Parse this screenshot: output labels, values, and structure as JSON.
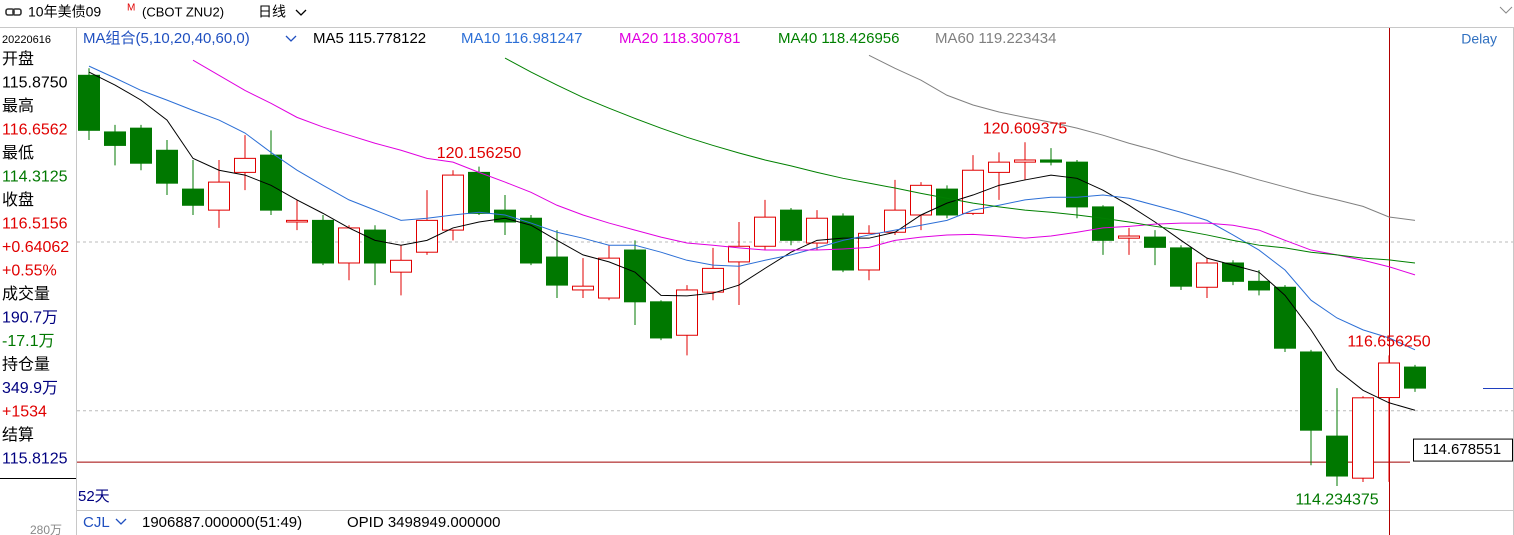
{
  "header": {
    "title": "10年美债09",
    "badge": "M",
    "code": "(CBOT ZNU2)",
    "period": "日线"
  },
  "sidebar": {
    "date": "20220616",
    "items": [
      {
        "text": "开盘",
        "color": "#000000"
      },
      {
        "text": "115.8750",
        "color": "#000000"
      },
      {
        "text": "最高",
        "color": "#000000"
      },
      {
        "text": "116.6562",
        "color": "#e00000"
      },
      {
        "text": "最低",
        "color": "#000000"
      },
      {
        "text": "114.3125",
        "color": "#007800"
      },
      {
        "text": "收盘",
        "color": "#000000"
      },
      {
        "text": "116.5156",
        "color": "#e00000"
      },
      {
        "text": "+0.64062",
        "color": "#e00000"
      },
      {
        "text": "+0.55%",
        "color": "#e00000"
      },
      {
        "text": "成交量",
        "color": "#000000"
      },
      {
        "text": "190.7万",
        "color": "#000080"
      },
      {
        "text": "-17.1万",
        "color": "#007800"
      },
      {
        "text": "持仓量",
        "color": "#000000"
      },
      {
        "text": "349.9万",
        "color": "#000080"
      },
      {
        "text": "+1534",
        "color": "#e00000"
      },
      {
        "text": "结算",
        "color": "#000000"
      },
      {
        "text": "115.8125",
        "color": "#000080"
      }
    ],
    "scale_label": "280万"
  },
  "chart_data": {
    "type": "candlestick",
    "ma_group": "MA组合(5,10,20,40,60,0)",
    "days": "52天",
    "delay": "Delay",
    "ylim": [
      113.79,
      122.69
    ],
    "ygrid": [
      118.76,
      115.63
    ],
    "up_color": "#e00000",
    "down_color": "#007800",
    "open": [
      121.85,
      120.8,
      120.87,
      120.46,
      119.74,
      119.35,
      120.05,
      120.37,
      119.13,
      119.16,
      118.37,
      118.98,
      118.2,
      118.57,
      118.98,
      120.05,
      119.35,
      119.2,
      118.48,
      117.87,
      117.72,
      118.61,
      117.65,
      117.03,
      117.83,
      118.39,
      118.68,
      119.35,
      118.74,
      119.24,
      118.24,
      118.94,
      119.26,
      119.74,
      119.29,
      120.05,
      120.24,
      120.28,
      120.24,
      119.41,
      118.83,
      118.85,
      118.65,
      117.92,
      118.37,
      118.03,
      117.92,
      116.72,
      115.16,
      114.38,
      115.875,
      116.44
    ],
    "high": [
      121.98,
      120.93,
      120.93,
      120.65,
      120.28,
      120.28,
      120.74,
      120.83,
      119.54,
      119.26,
      119.07,
      119.07,
      118.7,
      119.72,
      120.09,
      120.15625,
      119.63,
      119.26,
      118.98,
      118.46,
      118.7,
      118.79,
      117.68,
      117.96,
      118.65,
      119.13,
      119.54,
      119.39,
      119.35,
      119.29,
      119.07,
      119.91,
      119.87,
      119.81,
      120.37,
      120.42,
      120.609375,
      120.5,
      120.28,
      119.44,
      119.02,
      118.98,
      118.7,
      118.46,
      118.42,
      118.24,
      117.96,
      116.76,
      116.05,
      115.9,
      116.65625,
      116.48
    ],
    "low": [
      120.65,
      120.18,
      120.09,
      119.63,
      119.26,
      119.02,
      119.72,
      119.26,
      118.98,
      118.33,
      118.05,
      117.96,
      117.77,
      118.52,
      118.79,
      119.26,
      118.89,
      118.33,
      117.72,
      117.72,
      117.68,
      117.22,
      116.94,
      116.65625,
      117.68,
      117.59,
      118.61,
      118.7,
      118.61,
      118.2,
      118.05,
      118.89,
      118.98,
      119.2,
      119.26,
      119.54,
      119.91,
      120.18,
      119.2,
      118.52,
      118.52,
      118.33,
      117.87,
      117.72,
      117.96,
      117.77,
      116.72,
      114.62,
      114.234375,
      114.31,
      114.3125,
      115.98
    ],
    "close": [
      120.83,
      120.55,
      120.22,
      119.85,
      119.44,
      119.87,
      120.31,
      119.35,
      119.16,
      118.37,
      119.02,
      118.37,
      118.42,
      119.16,
      120.0,
      119.29,
      119.13,
      118.37,
      117.96,
      117.94,
      118.46,
      117.65,
      116.98,
      117.87,
      118.27,
      118.68,
      119.22,
      118.79,
      119.2,
      118.24,
      118.92,
      119.35,
      119.81,
      119.26,
      120.09,
      120.24,
      120.28,
      120.24,
      119.41,
      118.79,
      118.87,
      118.66,
      117.94,
      118.37,
      118.03,
      117.87,
      116.79,
      115.27,
      114.42,
      115.87,
      116.515625,
      116.05
    ],
    "series": [
      {
        "name": "MA5",
        "color": "#000000",
        "values": [
          121.91,
          121.67,
          121.39,
          121.02,
          120.31,
          120.09,
          120.0,
          119.81,
          119.54,
          119.29,
          119.02,
          118.79,
          118.7,
          118.79,
          119.02,
          119.13,
          119.2,
          119.07,
          118.79,
          118.52,
          118.39,
          118.2,
          117.77,
          117.76,
          117.81,
          117.96,
          118.27,
          118.57,
          118.79,
          118.83,
          118.83,
          118.94,
          119.26,
          119.48,
          119.63,
          119.81,
          119.91,
          120.0,
          119.94,
          119.72,
          119.44,
          119.13,
          118.79,
          118.46,
          118.33,
          118.2,
          117.77,
          117.13,
          116.39,
          116.01,
          115.778122,
          115.64
        ]
      },
      {
        "name": "MA10",
        "color": "#2c6fd6",
        "values": [
          122.02,
          121.8,
          121.57,
          121.39,
          121.2,
          121.02,
          120.78,
          120.42,
          120.09,
          119.81,
          119.54,
          119.35,
          119.16,
          119.2,
          119.26,
          119.31,
          119.26,
          119.11,
          118.94,
          118.83,
          118.7,
          118.7,
          118.57,
          118.42,
          118.33,
          118.31,
          118.42,
          118.52,
          118.65,
          118.79,
          118.89,
          118.98,
          119.07,
          119.16,
          119.35,
          119.44,
          119.54,
          119.59,
          119.59,
          119.63,
          119.57,
          119.44,
          119.31,
          119.16,
          118.89,
          118.61,
          118.24,
          117.68,
          117.35,
          117.13,
          116.981247,
          116.76
        ]
      },
      {
        "name": "MA20",
        "color": "#e000e0",
        "values": [
          null,
          null,
          null,
          null,
          122.13,
          121.85,
          121.57,
          121.33,
          121.07,
          120.89,
          120.74,
          120.59,
          120.46,
          120.31,
          120.24,
          120.05,
          119.87,
          119.68,
          119.44,
          119.26,
          119.11,
          118.98,
          118.85,
          118.74,
          118.7,
          118.65,
          118.61,
          118.61,
          118.61,
          118.63,
          118.66,
          118.79,
          118.85,
          118.89,
          118.9,
          118.87,
          118.83,
          118.87,
          118.94,
          119.02,
          119.05,
          119.09,
          119.11,
          119.11,
          119.07,
          118.98,
          118.79,
          118.61,
          118.52,
          118.42,
          118.300781,
          118.15
        ]
      },
      {
        "name": "MA40",
        "color": "#008000",
        "values": [
          null,
          null,
          null,
          null,
          null,
          null,
          null,
          null,
          null,
          null,
          null,
          null,
          null,
          null,
          null,
          null,
          122.17,
          121.91,
          121.67,
          121.44,
          121.24,
          121.05,
          120.87,
          120.7,
          120.55,
          120.41,
          120.28,
          120.17,
          120.05,
          119.94,
          119.85,
          119.76,
          119.66,
          119.57,
          119.48,
          119.41,
          119.35,
          119.31,
          119.26,
          119.2,
          119.13,
          119.05,
          118.98,
          118.89,
          118.79,
          118.7,
          118.65,
          118.57,
          118.52,
          118.46,
          118.426956,
          118.37
        ]
      },
      {
        "name": "MA60",
        "color": "#808080",
        "values": [
          null,
          null,
          null,
          null,
          null,
          null,
          null,
          null,
          null,
          null,
          null,
          null,
          null,
          null,
          null,
          null,
          null,
          null,
          null,
          null,
          null,
          null,
          null,
          null,
          null,
          null,
          null,
          null,
          null,
          null,
          122.22,
          121.98,
          121.76,
          121.48,
          121.3,
          121.17,
          121.07,
          120.98,
          120.87,
          120.74,
          120.59,
          120.46,
          120.31,
          120.18,
          120.05,
          119.91,
          119.78,
          119.65,
          119.54,
          119.42,
          119.223434,
          119.16
        ]
      }
    ],
    "annotations": [
      "120.156250",
      "116.656250",
      "120.609375",
      "114.234375"
    ],
    "price_line": 114.678551
  },
  "footer": {
    "indicator": "CJL",
    "volume": "1906887.000000(51:49)",
    "opid": "OPID 3498949.000000"
  }
}
